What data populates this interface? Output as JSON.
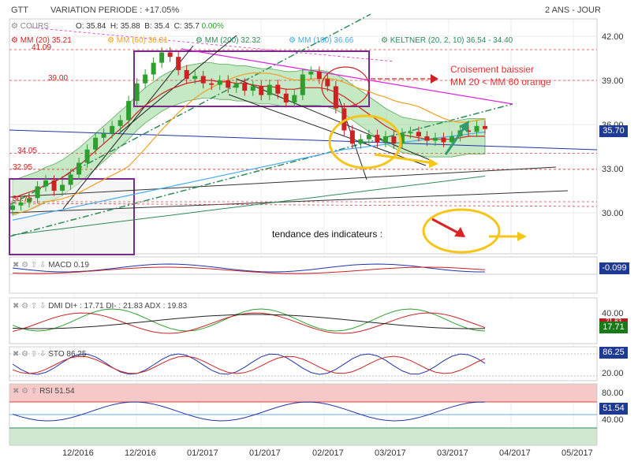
{
  "header": {
    "ticker": "GTT",
    "variation": "VARIATION PERIODE : +17.05%",
    "period": "2 ANS - JOUR",
    "ohlc": {
      "o": "O: 35.84",
      "h": "H: 35.88",
      "b": "B: 35.4",
      "c": "C: 35.7",
      "chg": "0.00%"
    }
  },
  "legend": {
    "cours": "COURS",
    "mm20": "MM (20) 35.21",
    "mm60": "MM (60) 36.81",
    "mm200": "MM (200) 32.32",
    "mm100": "MM (100) 36.66",
    "keltner": "KELTNER (20, 2, 10) 36.54 - 34.40"
  },
  "annotations": {
    "croisement_1": "Croisement baissier",
    "croisement_2": "MM 20 < MM 60 orange",
    "tendance": "tendance des indicateurs :",
    "level_4109": "41.09",
    "level_3900": "39.00",
    "level_3405": "34.05",
    "level_3295": "32.95",
    "level_3075": "30.75"
  },
  "colors": {
    "candle_up": "#2e9e2e",
    "candle_down": "#cc2222",
    "mm20": "#cc2222",
    "mm60": "#f0a020",
    "mm200": "#2e8b57",
    "mm100": "#44aaee",
    "keltner_fill": "#9fd99f",
    "purple": "#7a2a8a",
    "yellow": "#f5c518",
    "magenta": "#dd22dd",
    "price_box": "#1f3a93",
    "dmi_plus_box": "#1a7a1a",
    "dmi_minus_box": "#b02020",
    "rsi_top_fill": "#f6c8c8",
    "rsi_bottom_fill": "#cfe8cf"
  },
  "panels": {
    "macd": {
      "label": "MACD",
      "value": "0.19",
      "box": "-0.099"
    },
    "dmi": {
      "label": "DMI",
      "text": "DI+ : 17.71 DI- : 21.83 ADX : 19.83",
      "box_minus": "21.83",
      "box_plus": "17.71"
    },
    "sto": {
      "label": "STO",
      "value": "86.25",
      "box": "86.25"
    },
    "rsi": {
      "label": "RSI",
      "value": "51.54",
      "box": "51.54"
    }
  },
  "chart_data": {
    "type": "line",
    "title": "GTT",
    "ylim": [
      28.5,
      42.5
    ],
    "price_ticks": [
      "42.00",
      "39.00",
      "36.00",
      "33.00",
      "30.00"
    ],
    "last_price": "35.70",
    "x_tick_labels": [
      "12/2016",
      "12/2016",
      "01/2017",
      "01/2017",
      "02/2017",
      "03/2017",
      "03/2017",
      "04/2017",
      "05/2017"
    ],
    "series": [
      {
        "name": "COURS",
        "values": [
          30.5,
          30.7,
          31.0,
          31.8,
          32.2,
          31.5,
          31.9,
          32.6,
          33.4,
          34.3,
          35.1,
          35.4,
          35.9,
          36.3,
          37.6,
          38.8,
          39.4,
          40.2,
          40.9,
          40.6,
          39.7,
          39.1,
          39.3,
          38.8,
          38.7,
          39.0,
          38.5,
          38.8,
          38.3,
          38.6,
          38.0,
          38.7,
          38.1,
          37.5,
          38.0,
          39.4,
          39.6,
          39.1,
          38.6,
          37.1,
          35.6,
          34.7,
          35.0,
          35.3,
          34.8,
          35.2,
          34.7,
          35.4,
          35.5,
          35.2,
          34.9,
          35.1,
          34.8,
          35.2,
          35.6,
          35.5,
          35.9,
          35.7
        ]
      },
      {
        "name": "MM (20)",
        "values": [
          31.0,
          31.2,
          31.4,
          31.6,
          31.9,
          32.1,
          32.4,
          32.8,
          33.2,
          33.7,
          34.2,
          34.7,
          35.2,
          35.7,
          36.2,
          36.8,
          37.3,
          37.7,
          38.1,
          38.4,
          38.6,
          38.8,
          38.9,
          39.0,
          39.0,
          38.9,
          38.9,
          38.8,
          38.8,
          38.7,
          38.6,
          38.6,
          38.5,
          38.4,
          38.4,
          38.5,
          38.5,
          38.5,
          38.4,
          38.2,
          37.9,
          37.5,
          37.1,
          36.7,
          36.3,
          35.9,
          35.6,
          35.3,
          35.2,
          35.1,
          35.0,
          35.0,
          35.0,
          35.0,
          35.1,
          35.2,
          35.2,
          35.2
        ]
      }
    ],
    "horizontal_levels": [
      41.09,
      39.0,
      34.05,
      32.95,
      30.75
    ],
    "macd": {
      "value": 0.19,
      "last": -0.099
    },
    "dmi": {
      "di_plus": 17.71,
      "di_minus": 21.83,
      "adx": 19.83,
      "ticks": [
        "40.00"
      ]
    },
    "sto": {
      "value": 86.25,
      "ticks": [
        "80.00",
        "20.00"
      ]
    },
    "rsi": {
      "value": 51.54,
      "ticks": [
        "80.00",
        "40.00"
      ]
    }
  }
}
